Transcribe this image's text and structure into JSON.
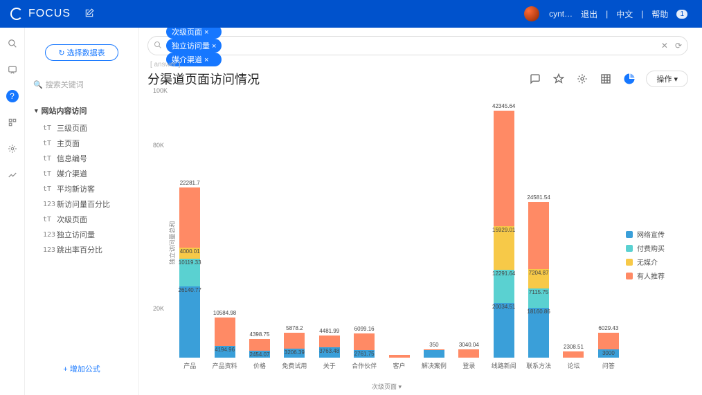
{
  "topbar": {
    "brand": "FOCUS",
    "username": "cynt…",
    "logout": "退出",
    "lang": "中文",
    "help": "帮助",
    "help_badge": "1"
  },
  "sidebar": {
    "select_btn": "↻ 选择数据表",
    "search_placeholder": "搜索关键词",
    "group": "网站内容访问",
    "items": [
      {
        "icon": "tT",
        "label": "三级页面"
      },
      {
        "icon": "tT",
        "label": "主页面"
      },
      {
        "icon": "tT",
        "label": "信息编号"
      },
      {
        "icon": "tT",
        "label": "媒介渠道"
      },
      {
        "icon": "tT",
        "label": "平均新访客"
      },
      {
        "icon": "123",
        "label": "新访问量百分比"
      },
      {
        "icon": "tT",
        "label": "次级页面"
      },
      {
        "icon": "123",
        "label": "独立访问量"
      },
      {
        "icon": "123",
        "label": "跳出率百分比"
      }
    ],
    "add_formula": "+ 增加公式"
  },
  "query": {
    "chips": [
      "次级页面 ×",
      "独立访问量 ×",
      "媒介渠道 ×"
    ]
  },
  "crumb": "[ answer ]",
  "title": "分渠道页面访问情况",
  "action_btn": "操作 ▾",
  "chart": {
    "ylabel": "独立访问量总和",
    "xaxis_title": "次级页面 ▾",
    "ymax": 100000,
    "yticks": [
      {
        "v": 20000,
        "label": "20K"
      },
      {
        "v": 40000,
        "label": ""
      },
      {
        "v": 60000,
        "label": ""
      },
      {
        "v": 80000,
        "label": "80K"
      },
      {
        "v": 100000,
        "label": "100K"
      }
    ],
    "colors": {
      "网络宣传": "#3a9fd9",
      "付费购买": "#5ad1d1",
      "无媒介": "#f7c948",
      "有人推荐": "#ff8a65"
    },
    "legend": [
      "网络宣传",
      "付费购买",
      "无媒介",
      "有人推荐"
    ],
    "categories": [
      {
        "name": "产品",
        "segs": [
          {
            "k": "网络宣传",
            "v": 26140.77
          },
          {
            "k": "付费购买",
            "v": 10119.33
          },
          {
            "k": "无媒介",
            "v": 4000.01
          },
          {
            "k": "有人推荐",
            "v": 22281.7
          }
        ]
      },
      {
        "name": "产品资料",
        "segs": [
          {
            "k": "网络宣传",
            "v": 4194.96
          },
          {
            "k": "有人推荐",
            "v": 10584.98
          }
        ]
      },
      {
        "name": "价格",
        "segs": [
          {
            "k": "网络宣传",
            "v": 2454.07
          },
          {
            "k": "有人推荐",
            "v": 4398.75
          }
        ]
      },
      {
        "name": "免费试用",
        "segs": [
          {
            "k": "网络宣传",
            "v": 3206.39
          },
          {
            "k": "有人推荐",
            "v": 5878.2
          }
        ]
      },
      {
        "name": "关于",
        "segs": [
          {
            "k": "网络宣传",
            "v": 3763.48
          },
          {
            "k": "有人推荐",
            "v": 4481.99
          }
        ]
      },
      {
        "name": "合作伙伴",
        "segs": [
          {
            "k": "网络宣传",
            "v": 2761.75
          },
          {
            "k": "有人推荐",
            "v": 6099.16
          }
        ]
      },
      {
        "name": "客户",
        "segs": [
          {
            "k": "有人推荐",
            "v": 900
          }
        ]
      },
      {
        "name": "解决案例",
        "segs": [
          {
            "k": "网络宣传",
            "v": 2733
          },
          {
            "k": "有人推荐",
            "v": 350
          }
        ]
      },
      {
        "name": "登录",
        "segs": [
          {
            "k": "有人推荐",
            "v": 3040.04
          }
        ]
      },
      {
        "name": "线路新闻",
        "segs": [
          {
            "k": "网络宣传",
            "v": 20034.51
          },
          {
            "k": "付费购买",
            "v": 12291.64
          },
          {
            "k": "无媒介",
            "v": 15929.01
          },
          {
            "k": "有人推荐",
            "v": 42345.64
          }
        ]
      },
      {
        "name": "联系方法",
        "segs": [
          {
            "k": "网络宣传",
            "v": 18160.86
          },
          {
            "k": "付费购买",
            "v": 7115.75
          },
          {
            "k": "无媒介",
            "v": 7204.87
          },
          {
            "k": "有人推荐",
            "v": 24581.54
          }
        ]
      },
      {
        "name": "论坛",
        "segs": [
          {
            "k": "有人推荐",
            "v": 2308.51
          }
        ]
      },
      {
        "name": "问答",
        "segs": [
          {
            "k": "网络宣传",
            "v": 3000
          },
          {
            "k": "有人推荐",
            "v": 6029.43
          }
        ]
      }
    ]
  }
}
